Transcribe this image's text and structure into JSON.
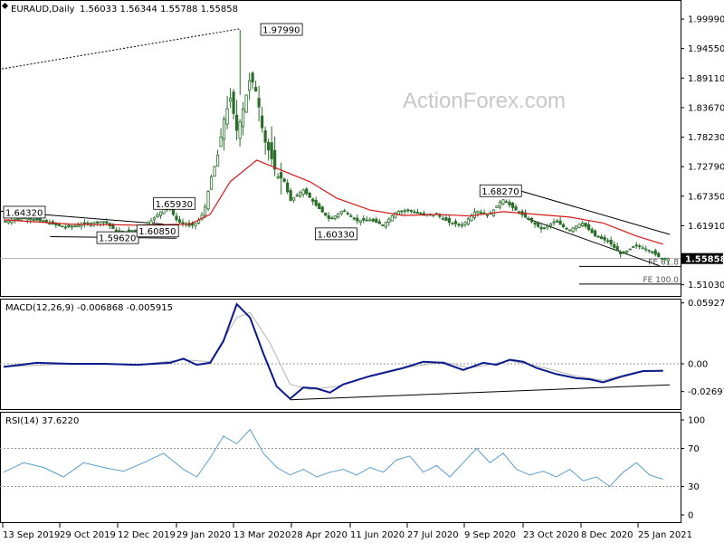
{
  "header": {
    "symbol": "EURAUD,Daily",
    "ohlc": "1.56033 1.56344 1.55788 1.55858"
  },
  "watermark": "ActionForex.com",
  "colors": {
    "candle": "#2a6e2a",
    "ema": "#d41919",
    "macd": "#0a1a8c",
    "signal": "#b4b4b4",
    "rsi": "#5a9ecf",
    "channel": "#000000"
  },
  "chart_data": [
    {
      "type": "candlestick",
      "title": "EURAUD,Daily",
      "ylim": [
        1.488,
        2.035
      ],
      "y_ticks": [
        "1.99990",
        "1.94550",
        "1.89110",
        "1.83670",
        "1.78230",
        "1.72790",
        "1.67350",
        "1.61910",
        "1.51030"
      ],
      "current_price": "1.55858",
      "x_ticks": [
        "13 Sep 2019",
        "29 Oct 2019",
        "12 Dec 2019",
        "29 Jan 2020",
        "13 Mar 2020",
        "28 Apr 2020",
        "11 Jun 2020",
        "27 Jul 2020",
        "9 Sep 2020",
        "23 Oct 2020",
        "8 Dec 2020",
        "25 Jan 2021"
      ],
      "annotations": [
        {
          "text": "1.97990",
          "x": 0.386,
          "y": 1.9799
        },
        {
          "text": "1.65930",
          "x": 0.225,
          "y": 1.6593
        },
        {
          "text": "1.64320",
          "x": 0.0,
          "y": 1.6432
        },
        {
          "text": "1.59620",
          "x": 0.14,
          "y": 1.5962
        },
        {
          "text": "1.60850",
          "x": 0.2,
          "y": 1.6085
        },
        {
          "text": "1.60330",
          "x": 0.468,
          "y": 1.6033
        },
        {
          "text": "1.68270",
          "x": 0.715,
          "y": 1.6827
        }
      ],
      "fib_levels": [
        {
          "label": "FE 61.8",
          "value": 1.544
        },
        {
          "label": "FE 100.0",
          "value": 1.5115
        }
      ],
      "close_path": [
        [
          0,
          1.627
        ],
        [
          0.03,
          1.634
        ],
        [
          0.06,
          1.626
        ],
        [
          0.09,
          1.616
        ],
        [
          0.12,
          1.622
        ],
        [
          0.15,
          1.627
        ],
        [
          0.17,
          1.606
        ],
        [
          0.2,
          1.612
        ],
        [
          0.22,
          1.628
        ],
        [
          0.245,
          1.657
        ],
        [
          0.26,
          1.627
        ],
        [
          0.28,
          1.618
        ],
        [
          0.29,
          1.626
        ],
        [
          0.3,
          1.645
        ],
        [
          0.31,
          1.705
        ],
        [
          0.32,
          1.745
        ],
        [
          0.33,
          1.815
        ],
        [
          0.34,
          1.855
        ],
        [
          0.35,
          1.79
        ],
        [
          0.36,
          1.84
        ],
        [
          0.37,
          1.895
        ],
        [
          0.38,
          1.86
        ],
        [
          0.39,
          1.78
        ],
        [
          0.4,
          1.75
        ],
        [
          0.41,
          1.71
        ],
        [
          0.42,
          1.705
        ],
        [
          0.43,
          1.665
        ],
        [
          0.45,
          1.685
        ],
        [
          0.47,
          1.655
        ],
        [
          0.49,
          1.63
        ],
        [
          0.51,
          1.648
        ],
        [
          0.53,
          1.628
        ],
        [
          0.55,
          1.63
        ],
        [
          0.57,
          1.62
        ],
        [
          0.59,
          1.645
        ],
        [
          0.61,
          1.648
        ],
        [
          0.63,
          1.638
        ],
        [
          0.65,
          1.64
        ],
        [
          0.67,
          1.625
        ],
        [
          0.69,
          1.62
        ],
        [
          0.71,
          1.647
        ],
        [
          0.73,
          1.638
        ],
        [
          0.75,
          1.668
        ],
        [
          0.77,
          1.648
        ],
        [
          0.79,
          1.63
        ],
        [
          0.81,
          1.612
        ],
        [
          0.83,
          1.628
        ],
        [
          0.85,
          1.61
        ],
        [
          0.87,
          1.625
        ],
        [
          0.89,
          1.6
        ],
        [
          0.91,
          1.59
        ],
        [
          0.93,
          1.565
        ],
        [
          0.95,
          1.583
        ],
        [
          0.97,
          1.575
        ],
        [
          0.99,
          1.5586
        ]
      ],
      "ema_path": [
        [
          0,
          1.63
        ],
        [
          0.1,
          1.622
        ],
        [
          0.2,
          1.62
        ],
        [
          0.28,
          1.622
        ],
        [
          0.31,
          1.64
        ],
        [
          0.34,
          1.7
        ],
        [
          0.38,
          1.74
        ],
        [
          0.42,
          1.72
        ],
        [
          0.46,
          1.7
        ],
        [
          0.5,
          1.67
        ],
        [
          0.55,
          1.648
        ],
        [
          0.6,
          1.638
        ],
        [
          0.65,
          1.64
        ],
        [
          0.7,
          1.637
        ],
        [
          0.75,
          1.645
        ],
        [
          0.8,
          1.64
        ],
        [
          0.85,
          1.635
        ],
        [
          0.9,
          1.624
        ],
        [
          0.95,
          1.6
        ],
        [
          0.99,
          1.585
        ]
      ]
    },
    {
      "type": "line",
      "title": "MACD(12,26,9) -0.006868 -0.005915",
      "ylim": [
        -0.044,
        0.0625
      ],
      "y_ticks": [
        "0.059272",
        "0.00",
        "-0.026978"
      ],
      "series": [
        {
          "name": "MACD",
          "values": [
            [
              0,
              -0.003
            ],
            [
              0.05,
              0.001
            ],
            [
              0.1,
              0.0
            ],
            [
              0.15,
              0.0
            ],
            [
              0.2,
              -0.001
            ],
            [
              0.25,
              0.001
            ],
            [
              0.27,
              0.005
            ],
            [
              0.29,
              -0.001
            ],
            [
              0.31,
              0.001
            ],
            [
              0.33,
              0.022
            ],
            [
              0.35,
              0.058
            ],
            [
              0.37,
              0.045
            ],
            [
              0.39,
              0.01
            ],
            [
              0.41,
              -0.022
            ],
            [
              0.43,
              -0.034
            ],
            [
              0.45,
              -0.023
            ],
            [
              0.47,
              -0.024
            ],
            [
              0.49,
              -0.028
            ],
            [
              0.51,
              -0.02
            ],
            [
              0.55,
              -0.012
            ],
            [
              0.6,
              -0.004
            ],
            [
              0.63,
              0.002
            ],
            [
              0.66,
              0.001
            ],
            [
              0.69,
              -0.006
            ],
            [
              0.72,
              0.001
            ],
            [
              0.74,
              -0.001
            ],
            [
              0.76,
              0.004
            ],
            [
              0.78,
              0.002
            ],
            [
              0.8,
              -0.004
            ],
            [
              0.83,
              -0.01
            ],
            [
              0.86,
              -0.014
            ],
            [
              0.88,
              -0.015
            ],
            [
              0.9,
              -0.018
            ],
            [
              0.93,
              -0.012
            ],
            [
              0.96,
              -0.007
            ],
            [
              0.99,
              -0.0069
            ]
          ]
        },
        {
          "name": "Signal",
          "values": [
            [
              0,
              -0.003
            ],
            [
              0.1,
              0.0
            ],
            [
              0.2,
              -0.001
            ],
            [
              0.27,
              0.004
            ],
            [
              0.31,
              0.002
            ],
            [
              0.35,
              0.045
            ],
            [
              0.37,
              0.05
            ],
            [
              0.4,
              0.02
            ],
            [
              0.43,
              -0.02
            ],
            [
              0.46,
              -0.025
            ],
            [
              0.5,
              -0.022
            ],
            [
              0.55,
              -0.012
            ],
            [
              0.6,
              -0.004
            ],
            [
              0.66,
              0.002
            ],
            [
              0.7,
              -0.004
            ],
            [
              0.76,
              0.003
            ],
            [
              0.8,
              -0.002
            ],
            [
              0.86,
              -0.012
            ],
            [
              0.9,
              -0.016
            ],
            [
              0.95,
              -0.008
            ],
            [
              0.99,
              -0.0059
            ]
          ]
        }
      ]
    },
    {
      "type": "line",
      "title": "RSI(14) 37.6220",
      "ylim": [
        0,
        100
      ],
      "y_ticks": [
        "100",
        "70",
        "30",
        "0"
      ],
      "series": [
        {
          "name": "RSI",
          "values": [
            [
              0,
              45
            ],
            [
              0.03,
              55
            ],
            [
              0.06,
              50
            ],
            [
              0.09,
              40
            ],
            [
              0.12,
              55
            ],
            [
              0.15,
              50
            ],
            [
              0.18,
              46
            ],
            [
              0.21,
              55
            ],
            [
              0.24,
              65
            ],
            [
              0.27,
              48
            ],
            [
              0.29,
              40
            ],
            [
              0.31,
              60
            ],
            [
              0.33,
              83
            ],
            [
              0.35,
              75
            ],
            [
              0.37,
              90
            ],
            [
              0.39,
              65
            ],
            [
              0.41,
              50
            ],
            [
              0.43,
              42
            ],
            [
              0.45,
              48
            ],
            [
              0.47,
              40
            ],
            [
              0.49,
              45
            ],
            [
              0.51,
              48
            ],
            [
              0.53,
              42
            ],
            [
              0.55,
              50
            ],
            [
              0.57,
              45
            ],
            [
              0.59,
              58
            ],
            [
              0.61,
              62
            ],
            [
              0.63,
              45
            ],
            [
              0.65,
              52
            ],
            [
              0.67,
              40
            ],
            [
              0.69,
              55
            ],
            [
              0.71,
              70
            ],
            [
              0.73,
              55
            ],
            [
              0.75,
              65
            ],
            [
              0.77,
              48
            ],
            [
              0.79,
              42
            ],
            [
              0.81,
              46
            ],
            [
              0.83,
              40
            ],
            [
              0.85,
              48
            ],
            [
              0.87,
              36
            ],
            [
              0.89,
              40
            ],
            [
              0.91,
              30
            ],
            [
              0.93,
              45
            ],
            [
              0.95,
              55
            ],
            [
              0.97,
              42
            ],
            [
              0.99,
              37.6
            ]
          ]
        }
      ]
    }
  ]
}
